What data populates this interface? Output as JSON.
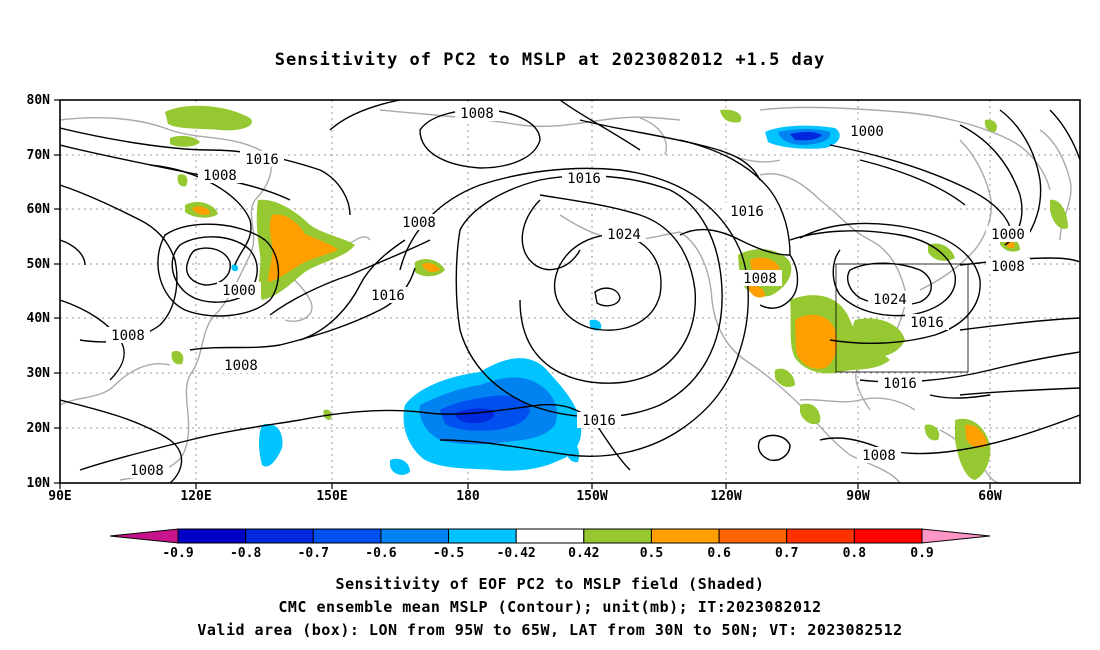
{
  "title": "Sensitivity of PC2 to MSLP at 2023082012 +1.5 day",
  "lat_ticks": [
    "80N",
    "70N",
    "60N",
    "50N",
    "40N",
    "30N",
    "20N",
    "10N"
  ],
  "lon_ticks": [
    "90E",
    "120E",
    "150E",
    "180",
    "150W",
    "120W",
    "90W",
    "60W"
  ],
  "contour_labels": [
    {
      "text": "1008",
      "id": "c-1008-a"
    },
    {
      "text": "1016",
      "id": "c-1016-a"
    },
    {
      "text": "1008",
      "id": "c-1008-b"
    },
    {
      "text": "1016",
      "id": "c-1016-b"
    },
    {
      "text": "1008",
      "id": "c-1008-c"
    },
    {
      "text": "1024",
      "id": "c-1024-a"
    },
    {
      "text": "1016",
      "id": "c-1016-c"
    },
    {
      "text": "1000",
      "id": "c-1000-a"
    },
    {
      "text": "1000",
      "id": "c-1000-b"
    },
    {
      "text": "1016",
      "id": "c-1016-d"
    },
    {
      "text": "1008",
      "id": "c-1008-d"
    },
    {
      "text": "1008",
      "id": "c-1008-e"
    },
    {
      "text": "1016",
      "id": "c-1016-e"
    },
    {
      "text": "1000",
      "id": "c-1000-c"
    },
    {
      "text": "1008",
      "id": "c-1008-f"
    },
    {
      "text": "1024",
      "id": "c-1024-b"
    },
    {
      "text": "1016",
      "id": "c-1016-f"
    },
    {
      "text": "1016",
      "id": "c-1016-g"
    },
    {
      "text": "1008",
      "id": "c-1008-g"
    },
    {
      "text": "1008",
      "id": "c-1008-h"
    },
    {
      "text": "1008",
      "id": "c-1008-i"
    }
  ],
  "colorbar": {
    "labels": [
      "-0.9",
      "-0.8",
      "-0.7",
      "-0.6",
      "-0.5",
      "-0.42",
      "0.42",
      "0.5",
      "0.6",
      "0.7",
      "0.8",
      "0.9"
    ],
    "colors": [
      "#c8148c",
      "#0000c8",
      "#0028dc",
      "#0050f0",
      "#0082f0",
      "#00c3ff",
      "#ffffff",
      "#96c832",
      "#ffa000",
      "#ff6400",
      "#ff3200",
      "#ff0000",
      "#ff96c8"
    ]
  },
  "captions": {
    "line1": "Sensitivity of EOF PC2 to MSLP field (Shaded)",
    "line2": "CMC ensemble mean MSLP (Contour); unit(mb); IT:2023082012",
    "line3": "Valid area (box): LON from 95W to 65W, LAT from 30N to 50N; VT: 2023082512"
  },
  "colors": {
    "contour": "#000000",
    "coast": "#aaaaaa",
    "grid": "#999999"
  }
}
